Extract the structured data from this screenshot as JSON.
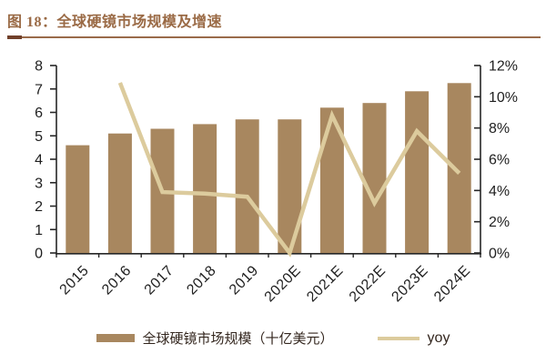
{
  "figure": {
    "title": "图 18：全球硬镜市场规模及增速",
    "title_color": "#9A6A45",
    "rule_color": "#9A6B4A",
    "rule_accent_color": "#70402A"
  },
  "chart_data": {
    "type": "bar",
    "subtype": "bar-line-combo",
    "categories": [
      "2015",
      "2016",
      "2017",
      "2018",
      "2019",
      "2020E",
      "2021E",
      "2022E",
      "2023E",
      "2024E"
    ],
    "series": [
      {
        "name": "全球硬镜市场规模（十亿美元）",
        "type": "bar",
        "axis": "left",
        "values": [
          4.6,
          5.1,
          5.3,
          5.5,
          5.7,
          5.7,
          6.2,
          6.4,
          6.9,
          7.25
        ],
        "color": "#A8875F"
      },
      {
        "name": "yoy",
        "type": "line",
        "axis": "right",
        "values_pct": [
          null,
          10.9,
          3.9,
          3.8,
          3.6,
          0.0,
          8.8,
          3.2,
          7.8,
          5.1
        ],
        "color": "#DCCB9D"
      }
    ],
    "left_axis": {
      "min": 0,
      "max": 8,
      "tick_labels": [
        "0",
        "1",
        "2",
        "3",
        "4",
        "5",
        "6",
        "7",
        "8"
      ]
    },
    "right_axis": {
      "min_pct": 0,
      "max_pct": 12,
      "tick_labels": [
        "0%",
        "2%",
        "4%",
        "6%",
        "8%",
        "10%",
        "12%"
      ]
    },
    "grid": false,
    "legend_position": "bottom",
    "axis_color": "#262626",
    "text_color": "#1F1F1F",
    "legend_text_color": "#33261E"
  }
}
